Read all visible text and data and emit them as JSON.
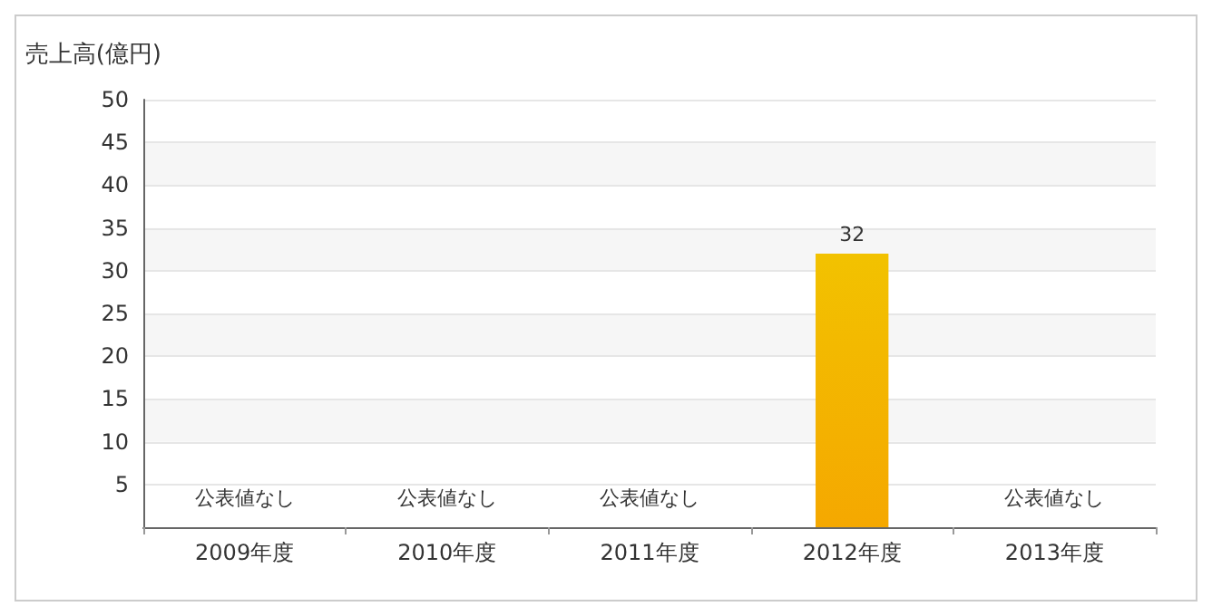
{
  "chart_data": {
    "type": "bar",
    "ylabel": "売上高(億円)",
    "categories": [
      "2009年度",
      "2010年度",
      "2011年度",
      "2012年度",
      "2013年度"
    ],
    "values": [
      null,
      null,
      null,
      32,
      null
    ],
    "color": "#f5a800",
    "ylim": [
      0,
      50
    ],
    "yticks": [
      5,
      10,
      15,
      20,
      25,
      30,
      35,
      40,
      45,
      50
    ],
    "grid": true,
    "value_labels": [
      "公表値なし",
      "公表値なし",
      "公表値なし",
      "32",
      "公表値なし"
    ]
  }
}
